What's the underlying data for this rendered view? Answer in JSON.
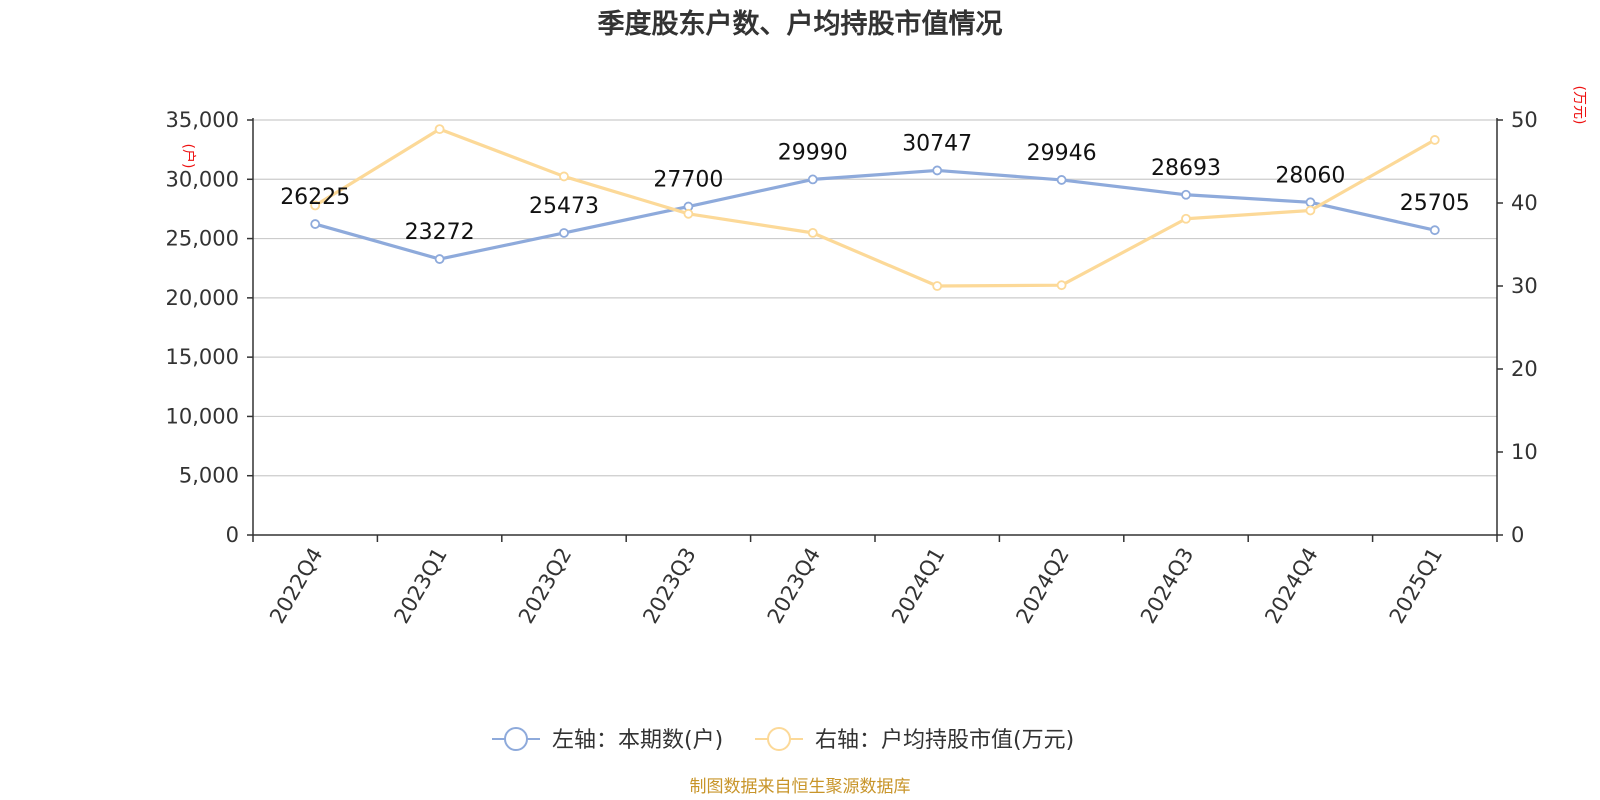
{
  "chart_data": {
    "type": "line",
    "title": "季度股东户数、户均持股市值情况",
    "categories": [
      "2022Q4",
      "2023Q1",
      "2023Q2",
      "2023Q3",
      "2023Q4",
      "2024Q1",
      "2024Q2",
      "2024Q3",
      "2024Q4",
      "2025Q1"
    ],
    "left_axis": {
      "unit": "(户)",
      "range": [
        0,
        35000
      ],
      "ticks": [
        "0",
        "5,000",
        "10,000",
        "15,000",
        "20,000",
        "25,000",
        "30,000",
        "35,000"
      ]
    },
    "right_axis": {
      "unit": "(万元)",
      "range": [
        0,
        50
      ],
      "ticks": [
        "0",
        "10",
        "20",
        "30",
        "40",
        "50"
      ]
    },
    "series": [
      {
        "name": "左轴：本期数(户)",
        "axis": "left",
        "color": "#8eaadb",
        "values": [
          26225,
          23272,
          25473,
          27700,
          29990,
          30747,
          29946,
          28693,
          28060,
          25705
        ],
        "labels": [
          "26225",
          "23272",
          "25473",
          "27700",
          "29990",
          "30747",
          "29946",
          "28693",
          "28060",
          "25705"
        ]
      },
      {
        "name": "右轴：户均持股市值(万元)",
        "axis": "right",
        "color": "#fcd998",
        "values": [
          39.7,
          48.9,
          43.2,
          38.7,
          36.4,
          30.0,
          30.1,
          38.1,
          39.1,
          47.6
        ]
      }
    ],
    "grid": true,
    "legend_position": "bottom-center",
    "source": "制图数据来自恒生聚源数据库"
  }
}
